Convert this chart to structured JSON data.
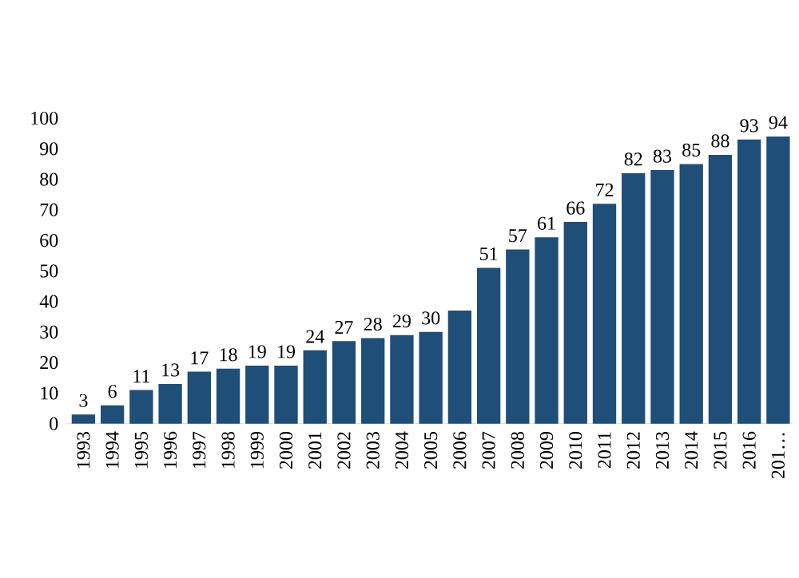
{
  "chart_data": {
    "type": "bar",
    "categories": [
      "1993",
      "1994",
      "1995",
      "1996",
      "1997",
      "1998",
      "1999",
      "2000",
      "2001",
      "2002",
      "2003",
      "2004",
      "2005",
      "2006",
      "2007",
      "2008",
      "2009",
      "2010",
      "2011",
      "2012",
      "2013",
      "2014",
      "2015",
      "2016",
      "201…"
    ],
    "values": [
      3,
      6,
      11,
      13,
      17,
      18,
      19,
      19,
      24,
      27,
      28,
      29,
      30,
      37,
      51,
      57,
      61,
      66,
      72,
      82,
      83,
      85,
      88,
      93,
      94
    ],
    "value_labels": [
      "3",
      "6",
      "11",
      "13",
      "17",
      "18",
      "19",
      "19",
      "24",
      "27",
      "28",
      "29",
      "30",
      null,
      "51",
      "57",
      "61",
      "66",
      "72",
      "82",
      "83",
      "85",
      "88",
      "93",
      "94"
    ],
    "color": "#1f4e79",
    "ylim": [
      0,
      100
    ],
    "yticks": [
      0,
      10,
      20,
      30,
      40,
      50,
      60,
      70,
      80,
      90,
      100
    ]
  }
}
